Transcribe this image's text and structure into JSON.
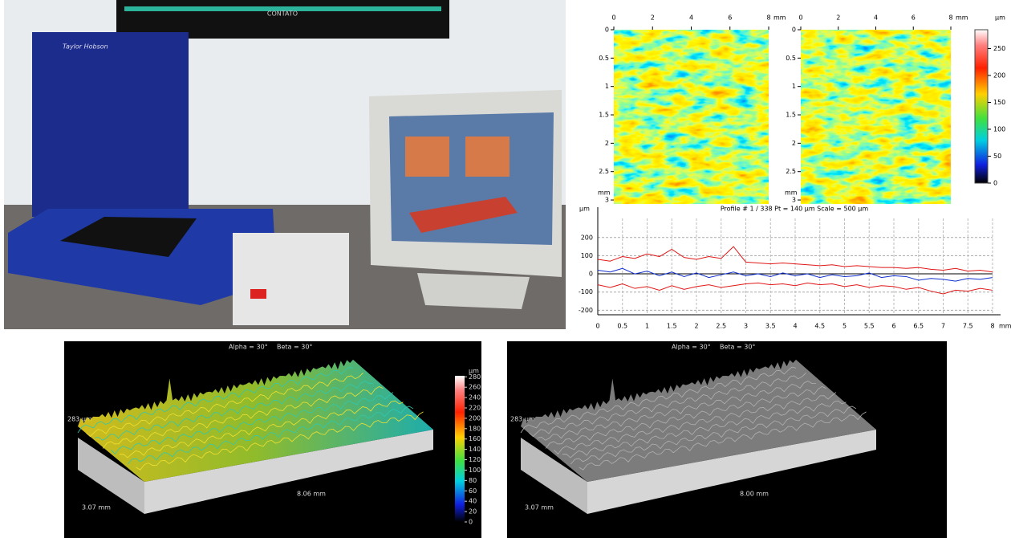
{
  "photo": {
    "brand": "Taylor Hobson",
    "banner": "CONTATO"
  },
  "heatmaps": {
    "x_ticks": [
      0,
      2,
      4,
      6,
      8
    ],
    "xlim": [
      0,
      8
    ],
    "x_unit": "mm",
    "y_ticks": [
      0,
      0.5,
      1,
      1.5,
      2,
      2.5,
      3
    ],
    "ylim": [
      0,
      3.07
    ],
    "y_unit": "mm",
    "colorbar": {
      "unit": "µm",
      "ticks": [
        250,
        200,
        150,
        100,
        50,
        0
      ],
      "lim": [
        0,
        285
      ]
    }
  },
  "chart_data": {
    "type": "line",
    "title": "Profile # 1 / 338 Pt = 140 µm  Scale = 500 µm",
    "y_label": "µm",
    "x_label": "mm",
    "x": [
      0,
      0.25,
      0.5,
      0.75,
      1,
      1.25,
      1.5,
      1.75,
      2,
      2.25,
      2.5,
      2.75,
      3,
      3.25,
      3.5,
      3.75,
      4,
      4.25,
      4.5,
      4.75,
      5,
      5.25,
      5.5,
      5.75,
      6,
      6.25,
      6.5,
      6.75,
      7,
      7.25,
      7.5,
      7.75,
      8
    ],
    "xlim": [
      0,
      8
    ],
    "xticks": [
      0,
      0.5,
      1,
      1.5,
      2,
      2.5,
      3,
      3.5,
      4,
      4.5,
      5,
      5.5,
      6,
      6.5,
      7,
      7.5,
      8
    ],
    "ylim": [
      -225,
      305
    ],
    "yticks": [
      200,
      100,
      0,
      -100,
      -200
    ],
    "grid": true,
    "series": [
      {
        "color": "#e01818",
        "values": [
          80,
          70,
          95,
          85,
          110,
          95,
          135,
          90,
          80,
          95,
          85,
          150,
          65,
          60,
          55,
          60,
          55,
          50,
          45,
          50,
          40,
          45,
          40,
          35,
          35,
          30,
          35,
          25,
          20,
          30,
          15,
          20,
          10
        ]
      },
      {
        "color": "#e01818",
        "values": [
          -60,
          -75,
          -55,
          -80,
          -70,
          -90,
          -65,
          -85,
          -70,
          -60,
          -75,
          -65,
          -55,
          -50,
          -60,
          -55,
          -65,
          -50,
          -60,
          -55,
          -70,
          -60,
          -75,
          -65,
          -70,
          -85,
          -75,
          -95,
          -110,
          -90,
          -95,
          -80,
          -90
        ]
      },
      {
        "color": "#1030d0",
        "values": [
          20,
          10,
          30,
          0,
          15,
          -10,
          10,
          -15,
          5,
          -20,
          -5,
          10,
          -10,
          0,
          -15,
          5,
          -10,
          0,
          -20,
          -5,
          -15,
          -10,
          5,
          -20,
          -10,
          -15,
          -35,
          -25,
          -30,
          -40,
          -25,
          -30,
          -20
        ]
      }
    ]
  },
  "surfaces": [
    {
      "alpha": "Alpha = 30°",
      "beta": "Beta = 30°",
      "height": "283 µm",
      "width": "3.07 mm",
      "length": "8.06 mm",
      "colorbar": {
        "unit": "µm",
        "ticks": [
          280,
          260,
          240,
          220,
          200,
          180,
          160,
          140,
          120,
          100,
          80,
          60,
          40,
          20,
          0
        ],
        "lim": [
          0,
          282
        ]
      }
    },
    {
      "alpha": "Alpha = 30°",
      "beta": "Beta = 30°",
      "height": "283 µm",
      "width": "3.07 mm",
      "length": "8.00 mm"
    }
  ]
}
